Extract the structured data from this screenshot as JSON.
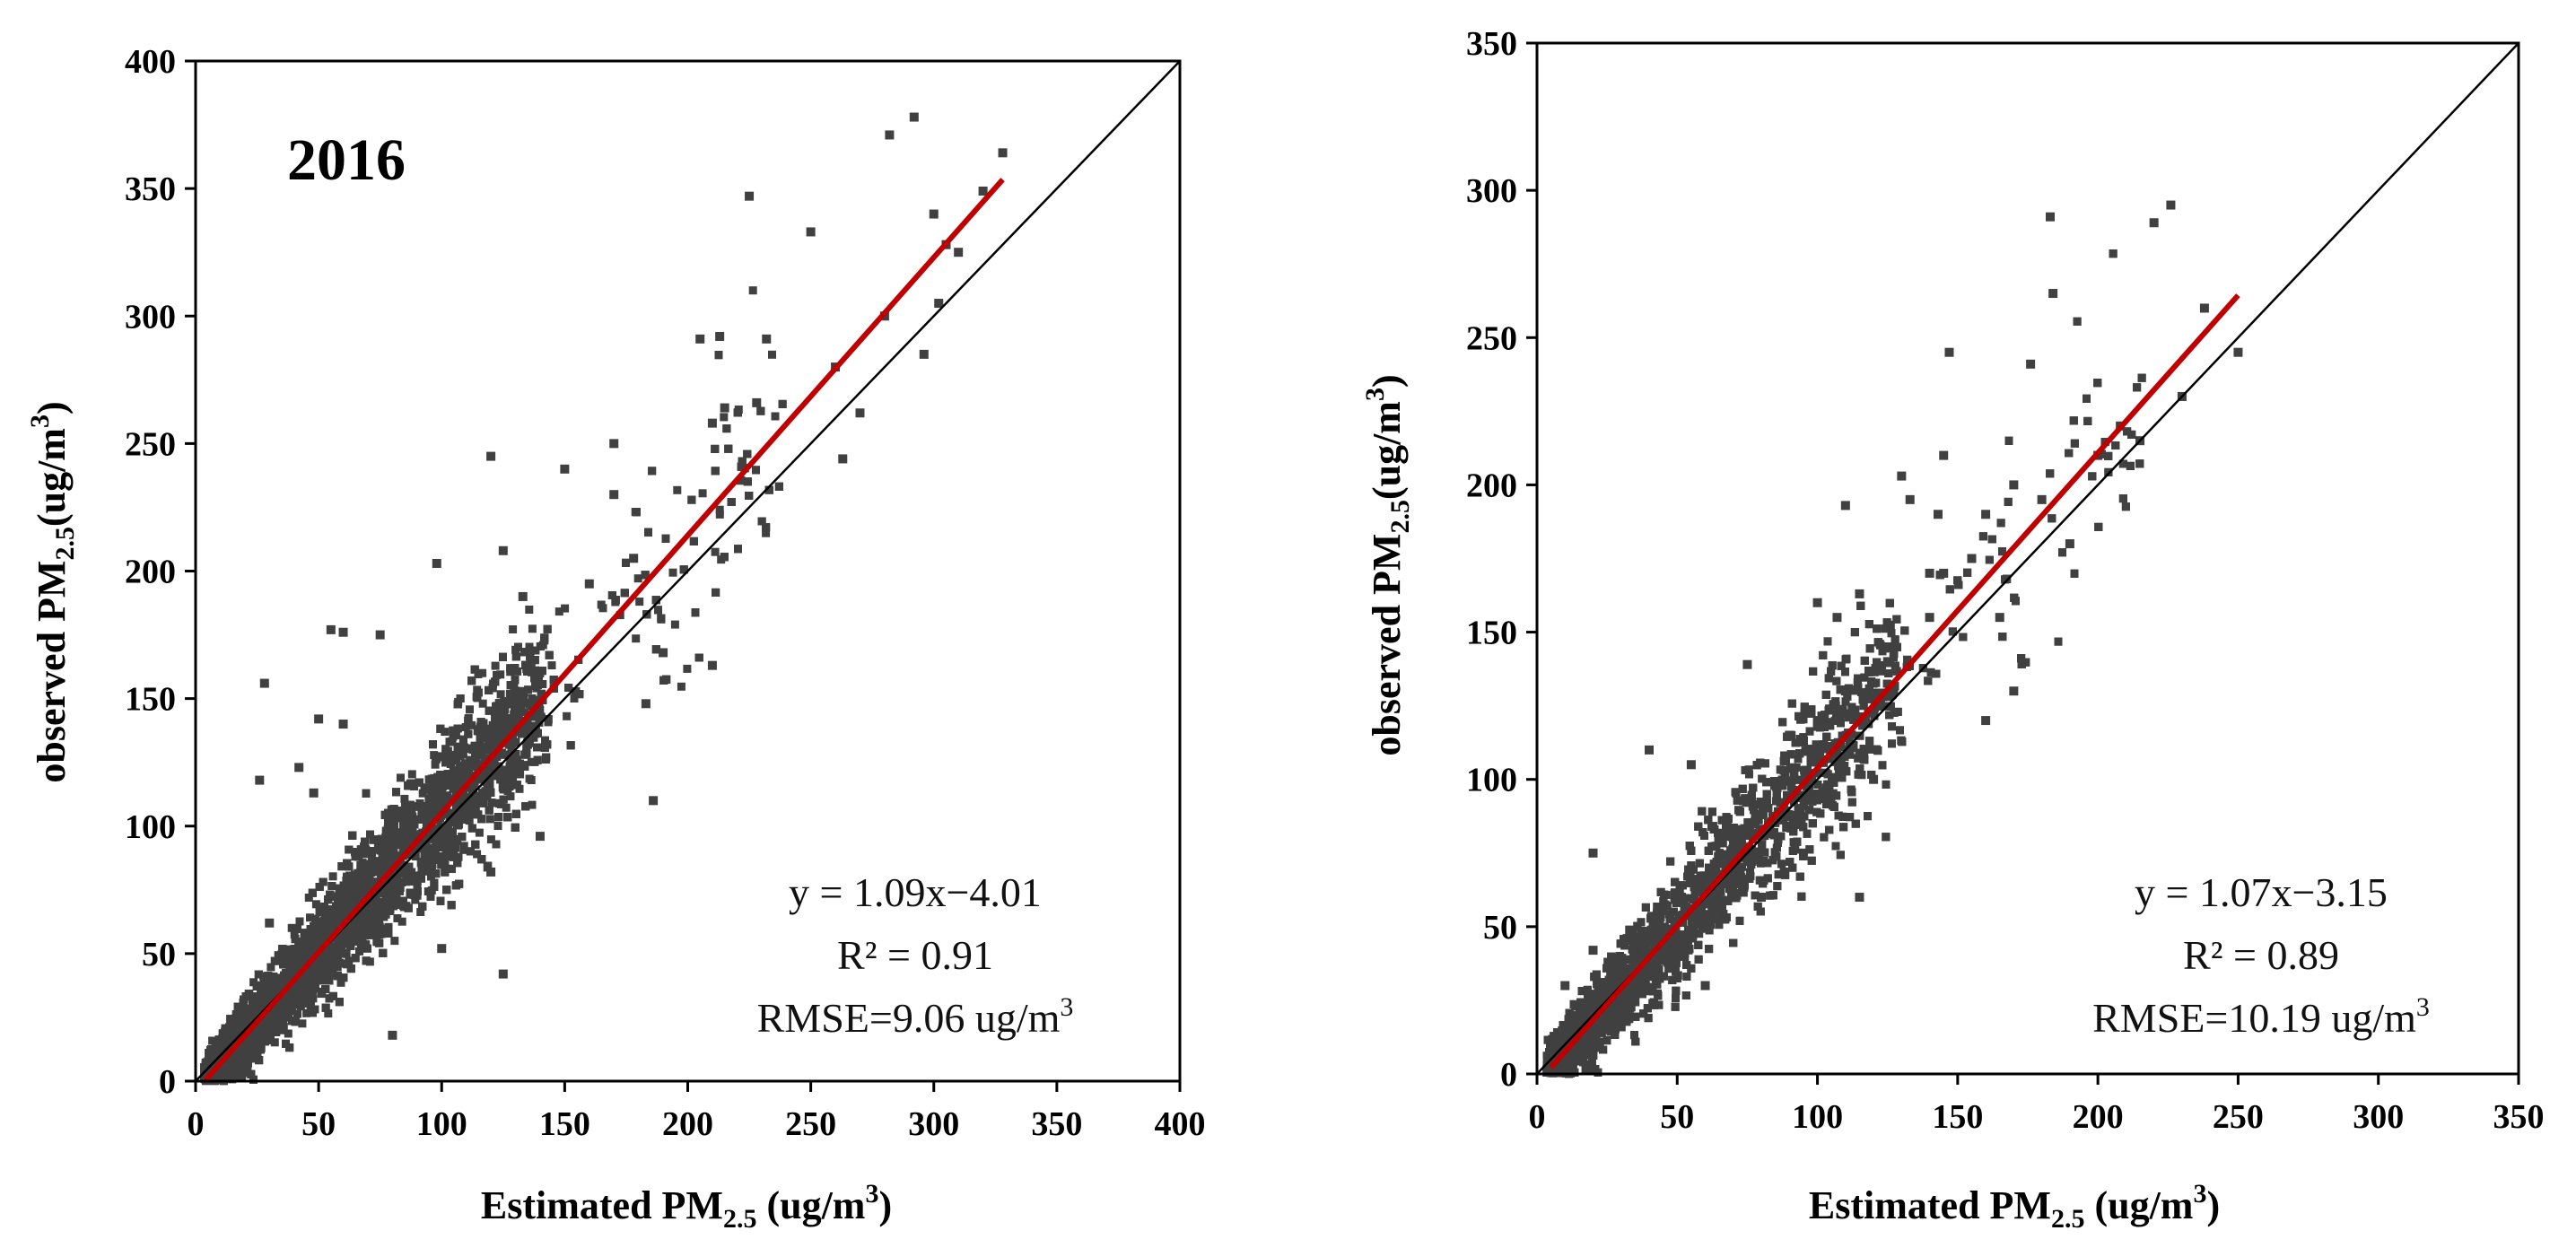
{
  "chart_data": [
    {
      "type": "scatter",
      "title": "2016",
      "xlabel": {
        "prefix": "Estimated PM",
        "sub": "2.5",
        "suffix": " (ug/m",
        "sup": "3",
        "close": ")"
      },
      "ylabel": {
        "prefix": "observed PM",
        "sub": "2.5",
        "suffix": "(ug/m",
        "sup": "3",
        "close": ")"
      },
      "xlim": [
        0,
        400
      ],
      "ylim": [
        0,
        400
      ],
      "xticks": [
        0,
        50,
        100,
        150,
        200,
        250,
        300,
        350,
        400
      ],
      "yticks": [
        0,
        50,
        100,
        150,
        200,
        250,
        300,
        350,
        400
      ],
      "fit": {
        "slope": 1.09,
        "intercept": -4.01,
        "x_range": [
          4,
          328
        ],
        "color": "#c00000"
      },
      "identity_line": true,
      "annotations": {
        "equation": "y = 1.09x−4.01",
        "r2": "R² = 0.91",
        "rmse_prefix": "RMSE=9.06 ug/m",
        "rmse_sup": "3"
      },
      "point_color": "#404040",
      "n_points_approx": 9000,
      "outliers": [
        [
          292,
          378
        ],
        [
          328,
          364
        ],
        [
          282,
          371
        ],
        [
          225,
          347
        ],
        [
          250,
          333
        ],
        [
          302,
          305
        ],
        [
          320,
          349
        ],
        [
          305,
          328
        ],
        [
          310,
          325
        ],
        [
          296,
          285
        ],
        [
          270,
          262
        ],
        [
          263,
          244
        ],
        [
          213,
          292
        ],
        [
          228,
          266
        ],
        [
          232,
          291
        ],
        [
          210,
          258
        ],
        [
          120,
          245
        ],
        [
          150,
          240
        ],
        [
          125,
          208
        ],
        [
          98,
          203
        ],
        [
          133,
          190
        ],
        [
          160,
          195
        ],
        [
          170,
          230
        ],
        [
          170,
          250
        ],
        [
          210,
          163
        ],
        [
          178,
          205
        ],
        [
          190,
          168
        ],
        [
          183,
          148
        ],
        [
          186,
          110
        ],
        [
          28,
          156
        ],
        [
          42,
          123
        ],
        [
          48,
          113
        ],
        [
          50,
          142
        ],
        [
          60,
          140
        ],
        [
          26,
          118
        ],
        [
          55,
          177
        ],
        [
          60,
          176
        ],
        [
          75,
          175
        ],
        [
          60,
          73
        ],
        [
          30,
          62
        ],
        [
          80,
          18
        ],
        [
          100,
          52
        ],
        [
          125,
          42
        ],
        [
          140,
          96
        ],
        [
          120,
          82
        ],
        [
          205,
          291
        ],
        [
          215,
          264
        ],
        [
          300,
          340
        ],
        [
          260,
          280
        ],
        [
          280,
          300
        ]
      ]
    },
    {
      "type": "scatter",
      "title": "",
      "xlabel": {
        "prefix": "Estimated PM",
        "sub": "2.5",
        "suffix": " (ug/m",
        "sup": "3",
        "close": ")"
      },
      "ylabel": {
        "prefix": "observed PM",
        "sub": "2.5",
        "suffix": "(ug/m",
        "sup": "3",
        "close": ")"
      },
      "xlim": [
        0,
        350
      ],
      "ylim": [
        0,
        350
      ],
      "xticks": [
        0,
        50,
        100,
        150,
        200,
        250,
        300,
        350
      ],
      "yticks": [
        0,
        50,
        100,
        150,
        200,
        250,
        300,
        350
      ],
      "fit": {
        "slope": 1.07,
        "intercept": -3.15,
        "x_range": [
          5,
          250
        ],
        "color": "#c00000"
      },
      "identity_line": true,
      "annotations": {
        "equation": "y = 1.07x−3.15",
        "r2": "R² = 0.89",
        "rmse_prefix": "RMSE=10.19 ug/m",
        "rmse_sup": "3"
      },
      "point_color": "#404040",
      "n_points_approx": 6500,
      "outliers": [
        [
          183,
          291
        ],
        [
          220,
          289
        ],
        [
          226,
          295
        ],
        [
          184,
          265
        ],
        [
          147,
          245
        ],
        [
          176,
          241
        ],
        [
          208,
          220
        ],
        [
          238,
          260
        ],
        [
          250,
          245
        ],
        [
          130,
          203
        ],
        [
          133,
          195
        ],
        [
          143,
          190
        ],
        [
          110,
          193
        ],
        [
          145,
          210
        ],
        [
          155,
          175
        ],
        [
          100,
          160
        ],
        [
          107,
          155
        ],
        [
          115,
          163
        ],
        [
          75,
          139
        ],
        [
          110,
          130
        ],
        [
          100,
          118
        ],
        [
          145,
          170
        ],
        [
          160,
          190
        ],
        [
          170,
          200
        ],
        [
          200,
          210
        ],
        [
          180,
          195
        ],
        [
          190,
          180
        ],
        [
          140,
          155
        ],
        [
          125,
          140
        ],
        [
          40,
          110
        ],
        [
          55,
          105
        ],
        [
          20,
          75
        ],
        [
          60,
          30
        ],
        [
          80,
          60
        ],
        [
          95,
          75
        ],
        [
          115,
          60
        ],
        [
          160,
          120
        ],
        [
          170,
          130
        ],
        [
          120,
          100
        ],
        [
          165,
          155
        ],
        [
          230,
          230
        ],
        [
          215,
          215
        ],
        [
          20,
          42
        ],
        [
          10,
          30
        ],
        [
          100,
          120
        ],
        [
          140,
          170
        ],
        [
          90,
          115
        ]
      ]
    }
  ]
}
